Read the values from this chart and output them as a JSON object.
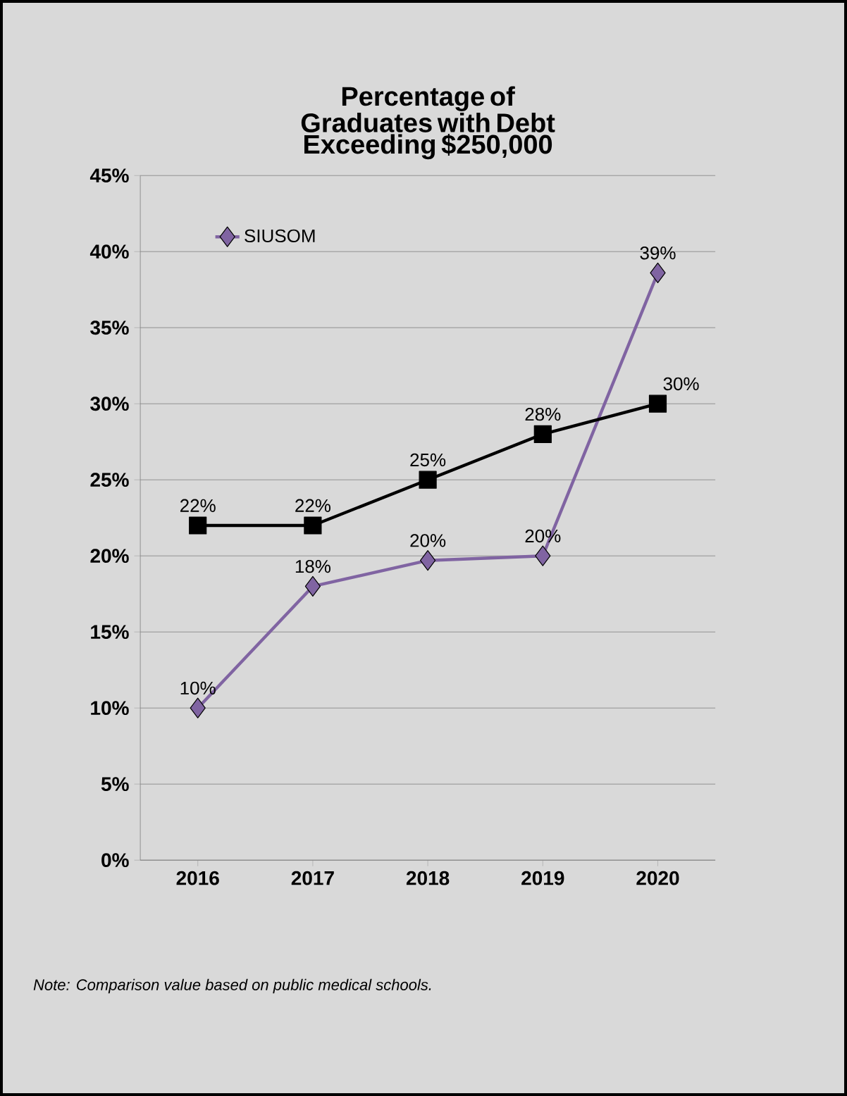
{
  "chart_data": {
    "type": "line",
    "title": "Percentage of Graduates with Debt Exceeding $250,000",
    "categories": [
      "2016",
      "2017",
      "2018",
      "2019",
      "2020"
    ],
    "series": [
      {
        "name": "SIUSOM",
        "color": "#8064a2",
        "marker": "diamond",
        "values": [
          10,
          18,
          19.7,
          20,
          38.6
        ],
        "value_labels": [
          "10%",
          "18%",
          "20%",
          "20%",
          "39%"
        ]
      },
      {
        "color": "#000000",
        "marker": "square",
        "values": [
          22,
          22,
          25,
          28,
          30
        ],
        "value_labels": [
          "22%",
          "22%",
          "25%",
          "28%",
          "30%"
        ]
      }
    ],
    "ylim": [
      0,
      45
    ],
    "yticks": [
      {
        "value": 0,
        "label": "0%"
      },
      {
        "value": 5,
        "label": "5%"
      },
      {
        "value": 10,
        "label": "10%"
      },
      {
        "value": 15,
        "label": "15%"
      },
      {
        "value": 20,
        "label": "20%"
      },
      {
        "value": 25,
        "label": "25%"
      },
      {
        "value": 30,
        "label": "30%"
      },
      {
        "value": 35,
        "label": "35%"
      },
      {
        "value": 40,
        "label": "40%"
      },
      {
        "value": 45,
        "label": "45%"
      }
    ],
    "grid": "y",
    "legend": "top left",
    "line_style": "solid",
    "annotations": [
      "Note:  Comparison value based on public medical schools."
    ]
  }
}
